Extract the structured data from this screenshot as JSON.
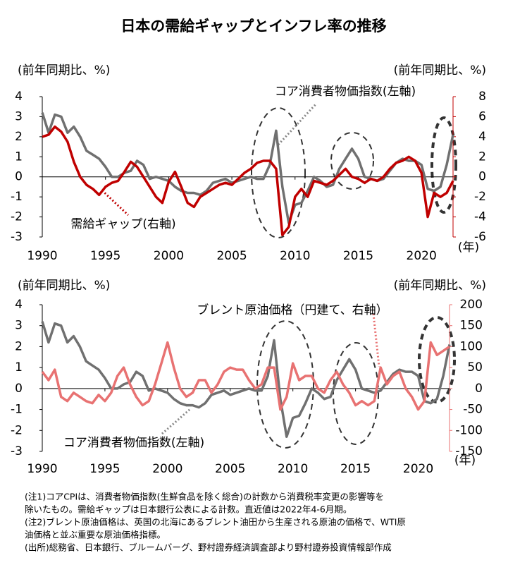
{
  "title": "日本の需給ギャップとインフレ率の推移",
  "chart_data": [
    {
      "type": "line",
      "y_label": "(前年同期比、%)",
      "y2_label": "(前年同期比、%)",
      "x_unit": "(年)",
      "xlim": [
        1990,
        2022.5
      ],
      "xticks": [
        1990,
        1995,
        2000,
        2005,
        2010,
        2015,
        2020
      ],
      "ylim": [
        -3,
        4
      ],
      "yticks": [
        -3,
        -2,
        -1,
        0,
        1,
        2,
        3,
        4
      ],
      "y2lim": [
        -6,
        8
      ],
      "y2ticks": [
        -6,
        -4,
        -2,
        0,
        2,
        4,
        6,
        8
      ],
      "x": [
        1990,
        1990.5,
        1991,
        1991.5,
        1992,
        1992.5,
        1993,
        1993.5,
        1994,
        1994.5,
        1995,
        1995.5,
        1996,
        1996.5,
        1997,
        1997.5,
        1998,
        1998.5,
        1999,
        1999.5,
        2000,
        2000.5,
        2001,
        2001.5,
        2002,
        2002.5,
        2003,
        2003.5,
        2004,
        2004.5,
        2005,
        2005.5,
        2006,
        2006.5,
        2007,
        2007.5,
        2008,
        2008.5,
        2009,
        2009.5,
        2010,
        2010.5,
        2011,
        2011.5,
        2012,
        2012.5,
        2013,
        2013.5,
        2014,
        2014.5,
        2015,
        2015.5,
        2016,
        2016.5,
        2017,
        2017.5,
        2018,
        2018.5,
        2019,
        2019.5,
        2020,
        2020.5,
        2021,
        2021.5,
        2022,
        2022.5
      ],
      "series": [
        {
          "name": "コア消費者物価指数(左軸)",
          "color": "#707070",
          "axis": "y",
          "values": [
            3.2,
            2.2,
            3.1,
            3.0,
            2.2,
            2.5,
            2.0,
            1.3,
            1.1,
            0.9,
            0.5,
            0.0,
            0.0,
            0.2,
            0.3,
            0.8,
            0.6,
            -0.1,
            0.0,
            -0.1,
            -0.2,
            -0.5,
            -0.7,
            -0.8,
            -0.8,
            -0.9,
            -0.7,
            -0.3,
            -0.2,
            -0.1,
            -0.3,
            -0.2,
            -0.1,
            0.0,
            -0.1,
            -0.1,
            0.6,
            2.3,
            -0.5,
            -2.3,
            -1.4,
            -1.3,
            -0.7,
            0.0,
            -0.2,
            -0.5,
            -0.4,
            0.4,
            0.9,
            1.4,
            0.9,
            0.0,
            -0.1,
            -0.2,
            -0.1,
            0.3,
            0.7,
            0.9,
            0.8,
            0.8,
            0.6,
            -0.6,
            -0.7,
            -0.5,
            0.6,
            2.1
          ]
        },
        {
          "name": "需給ギャップ(右軸)",
          "color": "#c00000",
          "axis": "y2",
          "values": [
            4.0,
            4.2,
            5.0,
            4.5,
            3.5,
            1.5,
            0.0,
            -0.8,
            -1.2,
            -1.8,
            -1.0,
            -0.6,
            -0.4,
            0.5,
            1.5,
            1.0,
            0.0,
            -1.0,
            -2.0,
            -2.6,
            -0.5,
            0.5,
            -1.0,
            -2.6,
            -3.0,
            -2.0,
            -1.6,
            -1.2,
            -0.8,
            -0.6,
            -0.8,
            -0.2,
            0.4,
            0.8,
            1.4,
            1.6,
            1.6,
            0.8,
            -5.8,
            -5.0,
            -2.0,
            -1.2,
            -2.0,
            -0.4,
            -0.6,
            -0.8,
            -0.4,
            0.2,
            0.8,
            0.0,
            -0.2,
            -0.6,
            -0.2,
            -0.4,
            0.0,
            0.8,
            1.4,
            1.6,
            2.0,
            1.6,
            0.4,
            -4.0,
            -1.6,
            -2.0,
            -1.6,
            -0.4
          ]
        }
      ]
    },
    {
      "type": "line",
      "y_label": "(前年同期比、%)",
      "y2_label": "(前年同期比、%)",
      "x_unit": "(年)",
      "xlim": [
        1990,
        2022.5
      ],
      "xticks": [
        1990,
        1995,
        2000,
        2005,
        2010,
        2015,
        2020
      ],
      "ylim": [
        -3,
        4
      ],
      "yticks": [
        -3,
        -2,
        -1,
        0,
        1,
        2,
        3,
        4
      ],
      "y2lim": [
        -150,
        200
      ],
      "y2ticks": [
        -150,
        -100,
        -50,
        0,
        50,
        100,
        150,
        200
      ],
      "x": [
        1990,
        1990.5,
        1991,
        1991.5,
        1992,
        1992.5,
        1993,
        1993.5,
        1994,
        1994.5,
        1995,
        1995.5,
        1996,
        1996.5,
        1997,
        1997.5,
        1998,
        1998.5,
        1999,
        1999.5,
        2000,
        2000.5,
        2001,
        2001.5,
        2002,
        2002.5,
        2003,
        2003.5,
        2004,
        2004.5,
        2005,
        2005.5,
        2006,
        2006.5,
        2007,
        2007.5,
        2008,
        2008.5,
        2009,
        2009.5,
        2010,
        2010.5,
        2011,
        2011.5,
        2012,
        2012.5,
        2013,
        2013.5,
        2014,
        2014.5,
        2015,
        2015.5,
        2016,
        2016.5,
        2017,
        2017.5,
        2018,
        2018.5,
        2019,
        2019.5,
        2020,
        2020.5,
        2021,
        2021.5,
        2022,
        2022.5
      ],
      "series": [
        {
          "name": "コア消費者物価指数(左軸)",
          "color": "#707070",
          "axis": "y",
          "values": [
            3.2,
            2.2,
            3.1,
            3.0,
            2.2,
            2.5,
            2.0,
            1.3,
            1.1,
            0.9,
            0.5,
            0.0,
            0.0,
            0.2,
            0.3,
            0.8,
            0.6,
            -0.1,
            0.0,
            -0.1,
            -0.2,
            -0.5,
            -0.7,
            -0.8,
            -0.8,
            -0.9,
            -0.7,
            -0.3,
            -0.2,
            -0.1,
            -0.3,
            -0.2,
            -0.1,
            0.0,
            -0.1,
            -0.1,
            0.6,
            2.3,
            -0.5,
            -2.3,
            -1.4,
            -1.3,
            -0.7,
            0.0,
            -0.2,
            -0.5,
            -0.4,
            0.4,
            0.9,
            1.4,
            0.9,
            0.0,
            -0.1,
            -0.2,
            -0.1,
            0.3,
            0.7,
            0.9,
            0.8,
            0.8,
            0.6,
            -0.6,
            -0.7,
            -0.5,
            0.6,
            2.1
          ]
        },
        {
          "name": "ブレント原油価格（円建て、右軸）",
          "color": "#e87272",
          "axis": "y2",
          "values": [
            40,
            20,
            45,
            -20,
            -30,
            -10,
            -20,
            -30,
            -35,
            -15,
            -30,
            -10,
            30,
            50,
            10,
            -20,
            -40,
            -30,
            10,
            60,
            110,
            50,
            0,
            -20,
            -10,
            20,
            20,
            -10,
            10,
            40,
            50,
            45,
            45,
            20,
            0,
            10,
            50,
            50,
            -50,
            -20,
            60,
            20,
            30,
            30,
            0,
            -10,
            20,
            40,
            10,
            -10,
            -40,
            -30,
            -40,
            -30,
            50,
            10,
            30,
            40,
            0,
            -20,
            -50,
            -30,
            110,
            80,
            90,
            100
          ]
        }
      ]
    }
  ],
  "notes": [
    "(注1)コアCPIは、消費者物価指数(生鮮食品を除く総合)の計数から消費税率変更の影響等を",
    "除いたもの。需給ギャップは日本銀行公表による計数。直近値は2022年4-6月期。",
    "(注2)ブレント原油価格は、英国の北海にあるブレント油田から生産される原油の価格で、WTI原",
    "油価格と並ぶ重要な原油価格指標。",
    "(出所)総務省、日本銀行、ブルームバーグ、野村證券経済調査部より野村證券投資情報部作成"
  ]
}
